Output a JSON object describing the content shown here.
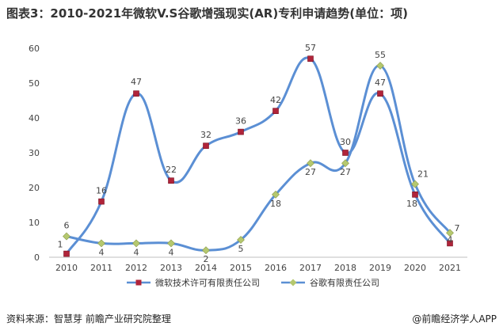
{
  "title": "图表3：2010-2021年微软V.S谷歌增强现实(AR)专利申请趋势(单位：项)",
  "footer": {
    "source": "资料来源：智慧芽 前瞻产业研究院整理",
    "brand": "@前瞻经济学人APP"
  },
  "colors": {
    "line": "#5b8fd4",
    "microsoft_marker": "#b0243a",
    "google_marker": "#b5c86e"
  },
  "chart_data": {
    "type": "line",
    "title": "图表3：2010-2021年微软V.S谷歌增强现实(AR)专利申请趋势(单位：项)",
    "categories": [
      "2010",
      "2011",
      "2012",
      "2013",
      "2014",
      "2015",
      "2016",
      "2017",
      "2018",
      "2019",
      "2020",
      "2021"
    ],
    "ylim": [
      0,
      60
    ],
    "yticks": [
      0,
      10,
      20,
      30,
      40,
      50,
      60
    ],
    "grid": false,
    "smooth": true,
    "legend_position": "bottom",
    "series": [
      {
        "name": "微软技术许可有限责任公司",
        "values": [
          1,
          16,
          47,
          22,
          32,
          36,
          42,
          57,
          30,
          47,
          18,
          4
        ]
      },
      {
        "name": "谷歌有限责任公司",
        "values": [
          6,
          4,
          4,
          4,
          2,
          5,
          18,
          27,
          27,
          55,
          21,
          7
        ]
      }
    ]
  }
}
